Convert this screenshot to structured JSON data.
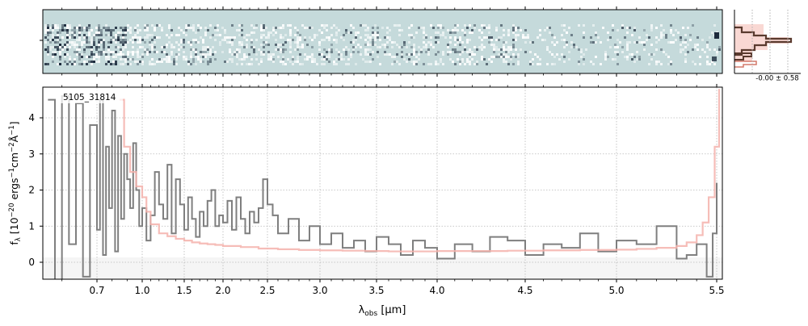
{
  "chart_data": [
    {
      "type": "heatmap",
      "panel": "2D spectrum",
      "description_kind": "spectral image strip",
      "colormap": [
        "#1c2a3c",
        "#ffffff",
        "#c5dadb"
      ],
      "x_range": [
        0.55,
        5.52
      ]
    },
    {
      "type": "line",
      "panel": "profile histogram",
      "annotation": "-0.00 ± 0.58",
      "colors": {
        "fill": "#f7c7c0",
        "line": "#5a3a2e",
        "outline": "#d4786a"
      }
    },
    {
      "type": "line",
      "label": "5105_31814",
      "xlabel_main": "λ",
      "xlabel_sub": "obs",
      "xlabel_unit": " [μm]",
      "ylabel": "f_λ [10^-20 ergs^-1 cm^-2 Å^-1]",
      "ylabel_parts": {
        "f": "f",
        "lambda_sub": "λ",
        "bracket_open": " [10",
        "exp1": "−20",
        "ergs": " ergs",
        "exp2": "−1",
        "cm": "cm",
        "exp3": "−2",
        "angstrom": "Å",
        "exp4": "−1",
        "bracket_close": "]"
      },
      "xticks": [
        0.7,
        1.0,
        1.5,
        2.0,
        2.5,
        3.0,
        3.5,
        4.0,
        4.5,
        5.0,
        5.5
      ],
      "xtick_labels": [
        "0.7",
        "1.0",
        "1.5",
        "2.0",
        "2.5",
        "3.0",
        "3.5",
        "4.0",
        "4.5",
        "5.0",
        "5.5"
      ],
      "yticks": [
        0,
        1,
        2,
        3,
        4
      ],
      "ytick_labels": [
        "0",
        "1",
        "2",
        "3",
        "4"
      ],
      "xlim": [
        0.55,
        5.52
      ],
      "ylim": [
        -0.5,
        4.8
      ],
      "x_scale": "power-stretched (compressed at long wavelengths)",
      "grid": true,
      "series": [
        {
          "color": "#7f7f7f",
          "x": [
            0.56,
            0.58,
            0.6,
            0.62,
            0.64,
            0.66,
            0.68,
            0.7,
            0.72,
            0.74,
            0.76,
            0.78,
            0.8,
            0.82,
            0.84,
            0.86,
            0.88,
            0.9,
            0.92,
            0.94,
            0.96,
            0.98,
            1.0,
            1.05,
            1.1,
            1.15,
            1.2,
            1.25,
            1.3,
            1.35,
            1.4,
            1.45,
            1.5,
            1.55,
            1.6,
            1.65,
            1.7,
            1.75,
            1.8,
            1.85,
            1.9,
            1.95,
            2.0,
            2.05,
            2.1,
            2.15,
            2.2,
            2.25,
            2.3,
            2.35,
            2.4,
            2.45,
            2.5,
            2.55,
            2.6,
            2.7,
            2.8,
            2.9,
            3.0,
            3.1,
            3.2,
            3.3,
            3.4,
            3.5,
            3.6,
            3.7,
            3.8,
            3.9,
            4.0,
            4.1,
            4.2,
            4.3,
            4.4,
            4.5,
            4.6,
            4.7,
            4.8,
            4.9,
            5.0,
            5.1,
            5.2,
            5.3,
            5.35,
            5.4,
            5.45,
            5.48,
            5.5
          ],
          "y": [
            4.5,
            -0.5,
            4.6,
            0.5,
            4.4,
            -0.4,
            3.8,
            0.9,
            4.5,
            0.2,
            3.2,
            1.5,
            4.2,
            0.3,
            3.5,
            1.2,
            3.0,
            2.3,
            1.5,
            3.3,
            2.0,
            1.0,
            1.5,
            0.6,
            1.3,
            2.5,
            1.6,
            1.2,
            2.7,
            0.8,
            2.3,
            1.6,
            0.9,
            1.8,
            1.2,
            0.7,
            1.4,
            1.0,
            1.7,
            2.0,
            1.0,
            1.3,
            1.1,
            1.7,
            0.9,
            1.8,
            1.2,
            0.8,
            1.4,
            1.1,
            1.5,
            2.3,
            1.6,
            1.3,
            0.8,
            1.2,
            0.6,
            1.0,
            0.5,
            0.8,
            0.4,
            0.6,
            0.3,
            0.7,
            0.5,
            0.2,
            0.6,
            0.4,
            0.1,
            0.5,
            0.3,
            0.7,
            0.6,
            0.2,
            0.5,
            0.4,
            0.8,
            0.3,
            0.6,
            0.5,
            1.0,
            0.1,
            0.2,
            0.5,
            -0.4,
            0.8,
            2.2
          ]
        },
        {
          "color": "#f4b1ab",
          "x": [
            0.85,
            0.88,
            0.92,
            0.96,
            1.0,
            1.05,
            1.1,
            1.2,
            1.3,
            1.4,
            1.5,
            1.6,
            1.7,
            1.8,
            1.9,
            2.0,
            2.2,
            2.4,
            2.6,
            2.8,
            3.0,
            3.2,
            3.4,
            3.6,
            3.8,
            4.0,
            4.2,
            4.4,
            4.6,
            4.8,
            5.0,
            5.1,
            5.2,
            5.3,
            5.35,
            5.4,
            5.43,
            5.46,
            5.49,
            5.51
          ],
          "y": [
            4.5,
            3.2,
            2.5,
            2.1,
            1.8,
            1.4,
            1.05,
            0.8,
            0.72,
            0.65,
            0.6,
            0.55,
            0.52,
            0.5,
            0.48,
            0.45,
            0.42,
            0.38,
            0.36,
            0.34,
            0.33,
            0.32,
            0.31,
            0.3,
            0.3,
            0.31,
            0.31,
            0.32,
            0.33,
            0.34,
            0.35,
            0.37,
            0.4,
            0.45,
            0.55,
            0.75,
            1.1,
            1.8,
            3.2,
            4.8
          ]
        }
      ]
    }
  ]
}
